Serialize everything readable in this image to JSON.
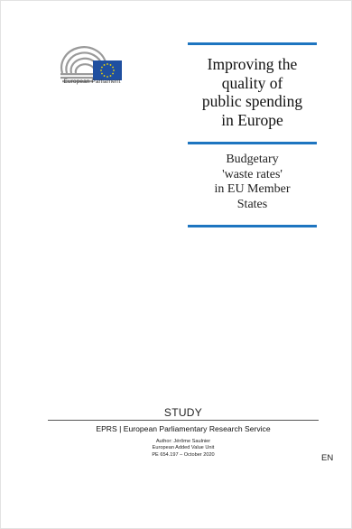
{
  "logo": {
    "label": "European Parliament",
    "flag_color": "#1f4fa0",
    "star_color": "#f2d700",
    "hemicycle_color": "#9a9a9a"
  },
  "title": {
    "lines": [
      "Improving the",
      "quality of",
      "public spending",
      "in Europe"
    ]
  },
  "subtitle": {
    "lines": [
      "Budgetary",
      "'waste rates'",
      "in EU Member",
      "States"
    ]
  },
  "accent_color": "#1e75c0",
  "footer": {
    "type": "STUDY",
    "service": "EPRS | European Parliamentary Research Service",
    "author": "Author: Jérôme Saulnier",
    "unit": "European Added Value Unit",
    "reference": "PE 654.197 – October 2020"
  },
  "language": "EN"
}
